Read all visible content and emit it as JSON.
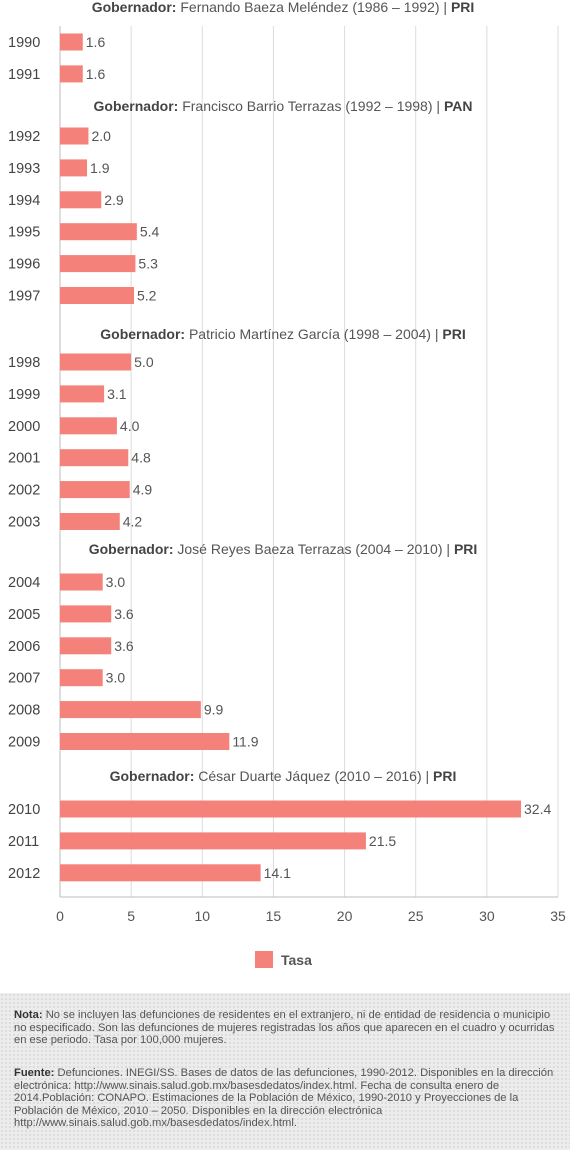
{
  "chart_data": {
    "type": "bar",
    "orientation": "horizontal",
    "xlim": [
      0,
      35
    ],
    "x_ticks": [
      "0",
      "5",
      "10",
      "15",
      "20",
      "25",
      "30",
      "35"
    ],
    "grid": true,
    "legend_position": "bottom-center",
    "bar_color": "#f4817a",
    "groups": [
      {
        "label_bold": "Gobernador:",
        "label": " Fernando Baeza Meléndez (1986 – 1992) | ",
        "party": "PRI",
        "rows": [
          {
            "year": "1990",
            "value": 1.6,
            "label": "1.6"
          },
          {
            "year": "1991",
            "value": 1.6,
            "label": "1.6"
          }
        ]
      },
      {
        "label_bold": "Gobernador:",
        "label": "  Francisco Barrio Terrazas (1992 – 1998) | ",
        "party": "PAN",
        "rows": [
          {
            "year": "1992",
            "value": 2.0,
            "label": "2.0"
          },
          {
            "year": "1993",
            "value": 1.9,
            "label": "1.9"
          },
          {
            "year": "1994",
            "value": 2.9,
            "label": "2.9"
          },
          {
            "year": "1995",
            "value": 5.4,
            "label": "5.4"
          },
          {
            "year": "1996",
            "value": 5.3,
            "label": "5.3"
          },
          {
            "year": "1997",
            "value": 5.2,
            "label": "5.2"
          }
        ]
      },
      {
        "label_bold": "Gobernador:",
        "label": " Patricio Martínez García (1998 – 2004) | ",
        "party": "PRI",
        "rows": [
          {
            "year": "1998",
            "value": 5.0,
            "label": "5.0"
          },
          {
            "year": "1999",
            "value": 3.1,
            "label": "3.1"
          },
          {
            "year": "2000",
            "value": 4.0,
            "label": "4.0"
          },
          {
            "year": "2001",
            "value": 4.8,
            "label": "4.8"
          },
          {
            "year": "2002",
            "value": 4.9,
            "label": "4.9"
          },
          {
            "year": "2003",
            "value": 4.2,
            "label": "4.2"
          }
        ]
      },
      {
        "label_bold": "Gobernador:",
        "label": " José Reyes Baeza Terrazas (2004 – 2010) | ",
        "party": "PRI",
        "rows": [
          {
            "year": "2004",
            "value": 3.0,
            "label": "3.0"
          },
          {
            "year": "2005",
            "value": 3.6,
            "label": "3.6"
          },
          {
            "year": "2006",
            "value": 3.6,
            "label": "3.6"
          },
          {
            "year": "2007",
            "value": 3.0,
            "label": "3.0"
          },
          {
            "year": "2008",
            "value": 9.9,
            "label": "9.9"
          },
          {
            "year": "2009",
            "value": 11.9,
            "label": "11.9"
          }
        ]
      },
      {
        "label_bold": "Gobernador:",
        "label": " César Duarte Jáquez (2010 – 2016) | ",
        "party": "PRI",
        "rows": [
          {
            "year": "2010",
            "value": 32.4,
            "label": "32.4"
          },
          {
            "year": "2011",
            "value": 21.5,
            "label": "21.5"
          },
          {
            "year": "2012",
            "value": 14.1,
            "label": "14.1"
          }
        ]
      }
    ],
    "legend": [
      {
        "name": "Tasa"
      }
    ]
  },
  "notes": {
    "nota_label": "Nota:",
    "nota_text": " No se incluyen las defunciones de residentes en el extranjero, ni de entidad de residencia o municipio no especificado. Son las defunciones de mujeres registradas los años que aparecen en el cuadro y ocurridas en ese periodo. Tasa por 100,000 mujeres.",
    "fuente_label": "Fuente:",
    "fuente_text": " Defunciones. INEGI/SS. Bases de datos de las defunciones, 1990-2012. Disponibles en la dirección electrónica: http://www.sinais.salud.gob.mx/basesdedatos/index.html. Fecha de consulta enero de 2014.Población: CONAPO. Estimaciones de la Población de México, 1990-2010 y Proyecciones de la Población de México, 2010 – 2050. Disponibles en la dirección electrónica http://www.sinais.salud.gob.mx/basesdedatos/index.html."
  }
}
